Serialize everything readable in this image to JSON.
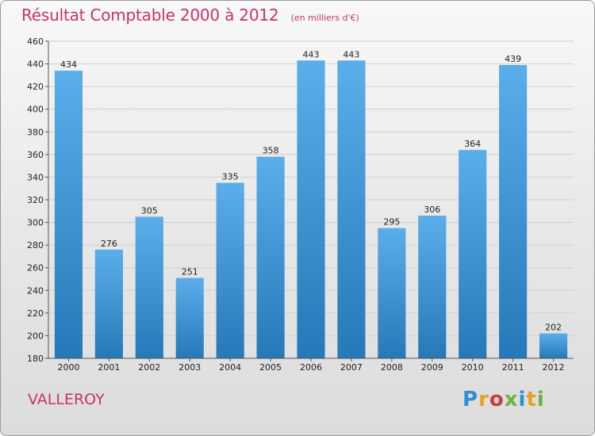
{
  "header": {
    "title": "Résultat Comptable 2000 à 2012",
    "subtitle": "(en milliers d'€)"
  },
  "commune": "VALLEROY",
  "logo": {
    "letters": [
      "P",
      "r",
      "o",
      "x",
      "i",
      "t",
      "i"
    ],
    "colors": [
      "#2e8fd6",
      "#e8a11e",
      "#d03a3a",
      "#6ab43e",
      "#2e8fd6",
      "#e8a11e",
      "#6ab43e"
    ]
  },
  "colors": {
    "title": "#c8326e",
    "bar_top": "#5aaeea",
    "bar_bottom": "#2679b8",
    "grid": "#cfcfcf"
  },
  "chart_data": {
    "type": "bar",
    "title": "Résultat Comptable 2000 à 2012",
    "subtitle": "(en milliers d'€)",
    "categories": [
      "2000",
      "2001",
      "2002",
      "2003",
      "2004",
      "2005",
      "2006",
      "2007",
      "2008",
      "2009",
      "2010",
      "2011",
      "2012"
    ],
    "values": [
      434,
      276,
      305,
      251,
      335,
      358,
      443,
      443,
      295,
      306,
      364,
      439,
      202
    ],
    "value_labels": [
      "434",
      "276",
      "305",
      "251",
      "335",
      "358",
      "443",
      "443",
      "295",
      "306",
      "364",
      "439",
      "202"
    ],
    "ylim": [
      180,
      460
    ],
    "yticks": [
      "180",
      "200",
      "220",
      "240",
      "260",
      "280",
      "300",
      "320",
      "340",
      "360",
      "380",
      "400",
      "420",
      "440",
      "460"
    ],
    "grid": true,
    "legend": "none"
  }
}
